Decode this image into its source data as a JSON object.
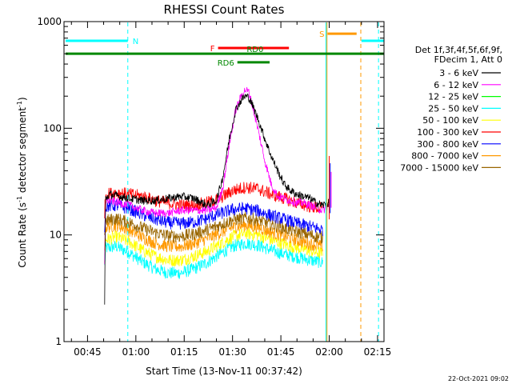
{
  "chart_data": {
    "type": "line",
    "title": "RHESSI Count Rates",
    "xlabel": "Start Time (13-Nov-11 00:37:42)",
    "ylabel": "Count Rate (s^-1 detector segment^-1)",
    "ylabel_main": "Count Rate (s",
    "ylabel_sup1": "-1",
    "ylabel_mid": " detector segment",
    "ylabel_sup2": "-1",
    "ylabel_end": ")",
    "y_scale": "log",
    "ylim": [
      1,
      1000
    ],
    "xlim_minutes": [
      37.7,
      137
    ],
    "x_ticks": [
      {
        "label": "00:45",
        "t": 45
      },
      {
        "label": "01:00",
        "t": 60
      },
      {
        "label": "01:15",
        "t": 75
      },
      {
        "label": "01:30",
        "t": 90
      },
      {
        "label": "01:45",
        "t": 105
      },
      {
        "label": "02:00",
        "t": 120
      },
      {
        "label": "02:15",
        "t": 135
      }
    ],
    "y_ticks": [
      {
        "label": "1",
        "v": 1
      },
      {
        "label": "10",
        "v": 10
      },
      {
        "label": "100",
        "v": 100
      },
      {
        "label": "1000",
        "v": 1000
      }
    ],
    "legend_header": [
      "Det 1f,3f,4f,5f,6f,9f,",
      "FDecim 1, Att 0"
    ],
    "legend_position": "right",
    "series": [
      {
        "name": "3 - 6 keV",
        "color": "#000000",
        "points": [
          [
            50.3,
            2.1
          ],
          [
            50.6,
            22
          ],
          [
            52,
            24
          ],
          [
            55,
            23
          ],
          [
            58,
            22
          ],
          [
            62,
            21
          ],
          [
            66,
            21
          ],
          [
            70,
            22
          ],
          [
            74,
            23
          ],
          [
            78,
            22
          ],
          [
            82,
            19
          ],
          [
            85,
            21
          ],
          [
            87,
            35
          ],
          [
            89,
            80
          ],
          [
            91,
            150
          ],
          [
            93,
            190
          ],
          [
            94,
            200
          ],
          [
            95,
            195
          ],
          [
            96,
            170
          ],
          [
            98,
            120
          ],
          [
            100,
            80
          ],
          [
            102,
            55
          ],
          [
            104,
            40
          ],
          [
            106,
            30
          ],
          [
            108,
            26
          ],
          [
            110,
            24
          ],
          [
            112,
            23
          ],
          [
            114,
            22
          ],
          [
            116,
            20
          ],
          [
            118,
            19
          ],
          [
            120,
            20
          ]
        ]
      },
      {
        "name": "6 - 12 keV",
        "color": "#ff00ff",
        "points": [
          [
            50.3,
            5
          ],
          [
            50.6,
            21
          ],
          [
            52,
            21
          ],
          [
            55,
            20
          ],
          [
            58,
            19
          ],
          [
            62,
            17
          ],
          [
            66,
            16
          ],
          [
            70,
            16
          ],
          [
            74,
            17
          ],
          [
            78,
            17
          ],
          [
            82,
            17
          ],
          [
            85,
            18
          ],
          [
            87,
            28
          ],
          [
            89,
            70
          ],
          [
            91,
            150
          ],
          [
            93,
            210
          ],
          [
            94,
            230
          ],
          [
            95,
            220
          ],
          [
            96,
            170
          ],
          [
            98,
            95
          ],
          [
            100,
            50
          ],
          [
            102,
            30
          ],
          [
            104,
            23
          ],
          [
            106,
            22
          ],
          [
            108,
            21
          ],
          [
            110,
            20
          ],
          [
            112,
            20
          ],
          [
            114,
            19
          ],
          [
            116,
            18
          ],
          [
            118,
            17
          ],
          [
            120,
            19
          ]
        ]
      },
      {
        "name": "12 - 25 keV",
        "color": "#00ff00",
        "points": []
      },
      {
        "name": "25 - 50 keV",
        "color": "#00ffff",
        "points": [
          [
            50.3,
            5
          ],
          [
            50.6,
            7.5
          ],
          [
            54,
            7.8
          ],
          [
            58,
            6.8
          ],
          [
            62,
            5.6
          ],
          [
            66,
            4.8
          ],
          [
            70,
            4.4
          ],
          [
            74,
            4.4
          ],
          [
            78,
            4.8
          ],
          [
            82,
            5.5
          ],
          [
            86,
            6.6
          ],
          [
            90,
            7.8
          ],
          [
            94,
            8.4
          ],
          [
            98,
            8
          ],
          [
            102,
            7.2
          ],
          [
            106,
            6.6
          ],
          [
            110,
            6.2
          ],
          [
            114,
            5.8
          ],
          [
            118,
            5.5
          ]
        ]
      },
      {
        "name": "50 - 100 keV",
        "color": "#ffff00",
        "points": [
          [
            50.3,
            6
          ],
          [
            50.6,
            9
          ],
          [
            54,
            9.6
          ],
          [
            58,
            8.6
          ],
          [
            62,
            7.2
          ],
          [
            66,
            6.3
          ],
          [
            70,
            5.8
          ],
          [
            74,
            5.8
          ],
          [
            78,
            6.3
          ],
          [
            82,
            7
          ],
          [
            86,
            8.2
          ],
          [
            90,
            9.6
          ],
          [
            94,
            10.4
          ],
          [
            98,
            10
          ],
          [
            102,
            9
          ],
          [
            106,
            8.2
          ],
          [
            110,
            7.6
          ],
          [
            114,
            7.1
          ],
          [
            118,
            6.7
          ]
        ]
      },
      {
        "name": "100 - 300 keV",
        "color": "#ff0000",
        "points": [
          [
            50.3,
            16
          ],
          [
            50.6,
            24
          ],
          [
            54,
            25
          ],
          [
            58,
            24
          ],
          [
            62,
            23
          ],
          [
            66,
            21
          ],
          [
            70,
            20
          ],
          [
            74,
            19
          ],
          [
            78,
            19
          ],
          [
            82,
            20
          ],
          [
            86,
            22
          ],
          [
            90,
            26
          ],
          [
            94,
            28
          ],
          [
            98,
            27
          ],
          [
            102,
            24
          ],
          [
            106,
            22
          ],
          [
            110,
            20
          ],
          [
            114,
            18.5
          ],
          [
            118,
            17.5
          ]
        ]
      },
      {
        "name": "300 - 800 keV",
        "color": "#0000ff",
        "points": [
          [
            50.3,
            12
          ],
          [
            50.6,
            18.5
          ],
          [
            54,
            19
          ],
          [
            58,
            17.5
          ],
          [
            62,
            15.5
          ],
          [
            66,
            14
          ],
          [
            70,
            13
          ],
          [
            74,
            12.8
          ],
          [
            78,
            13.2
          ],
          [
            82,
            14.2
          ],
          [
            86,
            15.8
          ],
          [
            90,
            17.3
          ],
          [
            94,
            17.8
          ],
          [
            98,
            16.8
          ],
          [
            102,
            15.2
          ],
          [
            106,
            14
          ],
          [
            110,
            12.8
          ],
          [
            114,
            12
          ],
          [
            118,
            11.2
          ]
        ]
      },
      {
        "name": "800 - 7000 keV",
        "color": "#ff9900",
        "points": [
          [
            50.3,
            8
          ],
          [
            50.6,
            11.8
          ],
          [
            54,
            12.4
          ],
          [
            58,
            11.1
          ],
          [
            62,
            9.5
          ],
          [
            66,
            8.4
          ],
          [
            70,
            7.8
          ],
          [
            74,
            7.8
          ],
          [
            78,
            8.3
          ],
          [
            82,
            9.2
          ],
          [
            86,
            10.4
          ],
          [
            90,
            11.8
          ],
          [
            94,
            12.4
          ],
          [
            98,
            11.8
          ],
          [
            102,
            10.6
          ],
          [
            106,
            9.7
          ],
          [
            110,
            8.9
          ],
          [
            114,
            8.3
          ],
          [
            118,
            7.8
          ]
        ]
      },
      {
        "name": "7000 - 15000 keV",
        "color": "#996600",
        "points": [
          [
            50.3,
            10
          ],
          [
            50.6,
            13.6
          ],
          [
            54,
            14.2
          ],
          [
            58,
            13.1
          ],
          [
            62,
            11.6
          ],
          [
            66,
            10.5
          ],
          [
            70,
            9.8
          ],
          [
            74,
            9.7
          ],
          [
            78,
            10.2
          ],
          [
            82,
            11.1
          ],
          [
            86,
            12.4
          ],
          [
            90,
            13.8
          ],
          [
            94,
            14.4
          ],
          [
            98,
            13.8
          ],
          [
            102,
            12.6
          ],
          [
            106,
            11.6
          ],
          [
            110,
            10.7
          ],
          [
            114,
            10
          ],
          [
            118,
            9.4
          ]
        ]
      }
    ],
    "vertical_lines": [
      {
        "t": 57.5,
        "color": "#00ffff",
        "dashed": true
      },
      {
        "t": 119.0,
        "color": "#00ffff",
        "dashed": false
      },
      {
        "t": 119.3,
        "color": "#ff9900",
        "dashed": false
      },
      {
        "t": 129.8,
        "color": "#ff9900",
        "dashed": true
      },
      {
        "t": 135.3,
        "color": "#00ffff",
        "dashed": true
      }
    ],
    "flag_bars": [
      {
        "label": "N",
        "color": "#00ffff",
        "t0": 38.2,
        "t1": 57.5,
        "level": 660,
        "label_side": "right"
      },
      {
        "label": "N",
        "color": "#00ffff",
        "t0": 130,
        "t1": 137,
        "level": 660,
        "label_side": "none"
      },
      {
        "label": "S",
        "color": "#ff9900",
        "t0": 119.5,
        "t1": 128.5,
        "level": 770,
        "label_side": "left"
      },
      {
        "label": "F",
        "color": "#ff0000",
        "t0": 85.5,
        "t1": 107.5,
        "level": 565,
        "label_side": "left"
      },
      {
        "label": "RD0",
        "color": "#008800",
        "t0": 38.2,
        "t1": 137,
        "level": 500,
        "label_side": "above-mid"
      },
      {
        "label": "RD6",
        "color": "#008800",
        "t0": 91.5,
        "t1": 101.5,
        "level": 415,
        "label_side": "left"
      }
    ]
  },
  "footer": {
    "timestamp": "22-Oct-2021 09:02"
  }
}
